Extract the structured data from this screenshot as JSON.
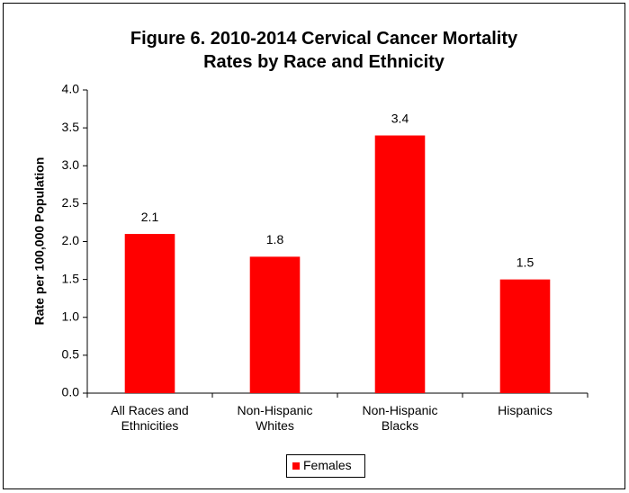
{
  "chart_data": {
    "type": "bar",
    "title": "Figure 6. 2010-2014 Cervical Cancer Mortality Rates by Race and Ethnicity",
    "y_label": "Rate per 100,000 Population",
    "categories": [
      "All Races and Ethnicities",
      "Non-Hispanic Whites",
      "Non-Hispanic Blacks",
      "Hispanics"
    ],
    "series": [
      {
        "name": "Females",
        "color": "#ff0000",
        "values": [
          2.1,
          1.8,
          3.4,
          1.5
        ]
      }
    ],
    "ylim": [
      0,
      4
    ],
    "yticks": [
      {
        "value": 0,
        "label": "0.0"
      },
      0.5,
      {
        "value": 1,
        "label": "1.0"
      },
      1.5,
      {
        "value": 2,
        "label": "2.0"
      },
      2.5,
      {
        "value": 3,
        "label": "3.0"
      },
      3.5,
      {
        "value": 4,
        "label": "4.0"
      }
    ],
    "grid": false,
    "legend": "bottom"
  }
}
